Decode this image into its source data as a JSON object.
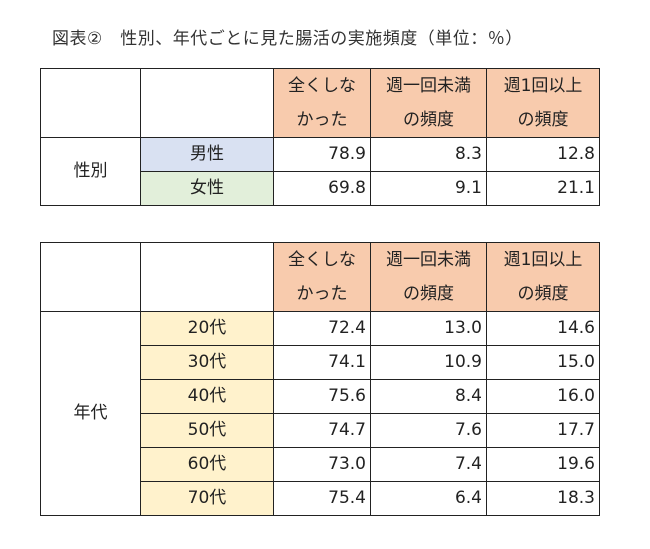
{
  "caption": "図表②　性別、年代ごとに見た腸活の実施頻度（単位：％）",
  "headers": {
    "col1": [
      "全くしな",
      "かった"
    ],
    "col2": [
      "週一回未満",
      "の頻度"
    ],
    "col3": [
      "週1回以上",
      "の頻度"
    ]
  },
  "table1": {
    "group_label": "性別",
    "rows": [
      {
        "label": "男性",
        "values": [
          "78.9",
          "8.3",
          "12.8"
        ]
      },
      {
        "label": "女性",
        "values": [
          "69.8",
          "9.1",
          "21.1"
        ]
      }
    ]
  },
  "table2": {
    "group_label": "年代",
    "rows": [
      {
        "label": "20代",
        "values": [
          "72.4",
          "13.0",
          "14.6"
        ]
      },
      {
        "label": "30代",
        "values": [
          "74.1",
          "10.9",
          "15.0"
        ]
      },
      {
        "label": "40代",
        "values": [
          "75.6",
          "8.4",
          "16.0"
        ]
      },
      {
        "label": "50代",
        "values": [
          "74.7",
          "7.6",
          "17.7"
        ]
      },
      {
        "label": "60代",
        "values": [
          "73.0",
          "7.4",
          "19.6"
        ]
      },
      {
        "label": "70代",
        "values": [
          "75.4",
          "6.4",
          "18.3"
        ]
      }
    ]
  },
  "colors": {
    "header_bg": "#f8cbad",
    "male_bg": "#d9e1f2",
    "female_bg": "#e2efda",
    "age_bg": "#fff2cc"
  }
}
